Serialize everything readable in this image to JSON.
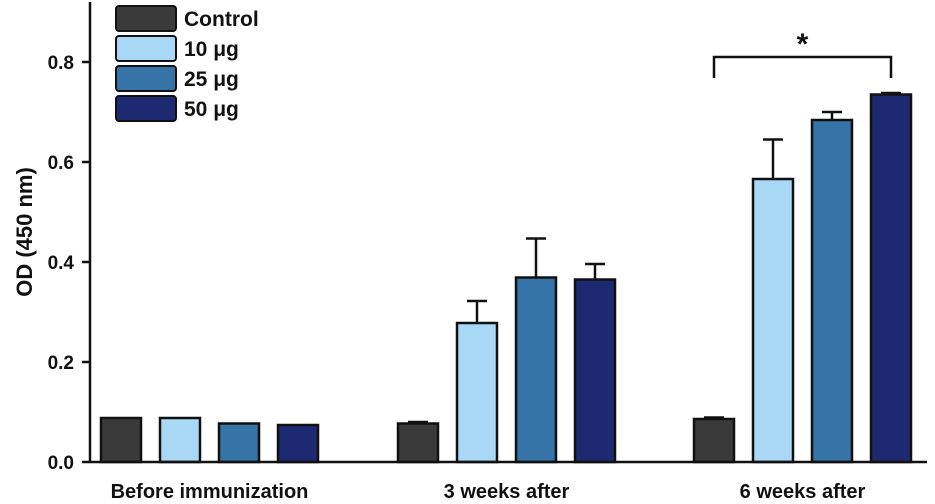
{
  "chart_data": {
    "type": "bar",
    "title": "",
    "xlabel": "",
    "ylabel": "OD (450 nm)",
    "ylim": [
      0,
      0.88
    ],
    "yticks": [
      "0.0",
      "0.2",
      "0.4",
      "0.6",
      "0.8"
    ],
    "categories": [
      "Before immunization",
      "3 weeks after",
      "6 weeks after"
    ],
    "series": [
      {
        "name": "Control",
        "color": "#3a3a3a",
        "values": [
          0.088,
          0.077,
          0.086
        ],
        "errors": [
          0.0,
          0.003,
          0.003
        ]
      },
      {
        "name": "10 μg",
        "color": "#a8d8f5",
        "values": [
          0.088,
          0.278,
          0.566
        ],
        "errors": [
          0.0,
          0.044,
          0.079
        ]
      },
      {
        "name": "25 μg",
        "color": "#3674a8",
        "values": [
          0.077,
          0.369,
          0.684
        ],
        "errors": [
          0.0,
          0.078,
          0.016
        ]
      },
      {
        "name": "50 μg",
        "color": "#1d2a72",
        "values": [
          0.074,
          0.365,
          0.735
        ],
        "errors": [
          0.0,
          0.031,
          0.003
        ]
      }
    ],
    "annotation": {
      "text": "*",
      "from_series": 0,
      "to_series": 3,
      "category": 2
    },
    "legend": "top-left"
  }
}
